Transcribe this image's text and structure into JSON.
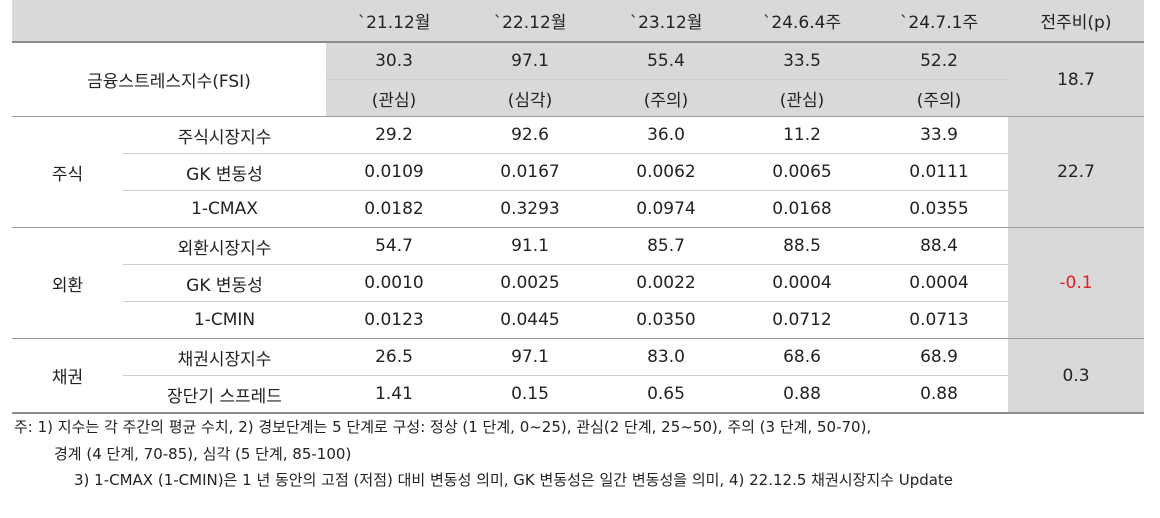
{
  "header": {
    "cols": [
      "`21.12월",
      "`22.12월",
      "`23.12월",
      "`24.6.4주",
      "`24.7.1주"
    ],
    "change": "전주비(p)"
  },
  "fsi": {
    "label": "금융스트레스지수(FSI)",
    "values": [
      "30.3",
      "97.1",
      "55.4",
      "33.5",
      "52.2"
    ],
    "levels": [
      "(관심)",
      "(심각)",
      "(주의)",
      "(관심)",
      "(주의)"
    ],
    "change": "18.7"
  },
  "stock": {
    "label": "주식",
    "change": "22.7",
    "rows": [
      {
        "label": "주식시장지수",
        "values": [
          "29.2",
          "92.6",
          "36.0",
          "11.2",
          "33.9"
        ]
      },
      {
        "label": "GK 변동성",
        "values": [
          "0.0109",
          "0.0167",
          "0.0062",
          "0.0065",
          "0.0111"
        ]
      },
      {
        "label": "1-CMAX",
        "values": [
          "0.0182",
          "0.3293",
          "0.0974",
          "0.0168",
          "0.0355"
        ]
      }
    ]
  },
  "fx": {
    "label": "외환",
    "change": "-0.1",
    "rows": [
      {
        "label": "외환시장지수",
        "values": [
          "54.7",
          "91.1",
          "85.7",
          "88.5",
          "88.4"
        ]
      },
      {
        "label": "GK 변동성",
        "values": [
          "0.0010",
          "0.0025",
          "0.0022",
          "0.0004",
          "0.0004"
        ]
      },
      {
        "label": "1-CMIN",
        "values": [
          "0.0123",
          "0.0445",
          "0.0350",
          "0.0712",
          "0.0713"
        ]
      }
    ]
  },
  "bond": {
    "label": "채권",
    "change": "0.3",
    "rows": [
      {
        "label": "채권시장지수",
        "values": [
          "26.5",
          "97.1",
          "83.0",
          "68.6",
          "68.9"
        ]
      },
      {
        "label": "장단기 스프레드",
        "values": [
          "1.41",
          "0.15",
          "0.65",
          "0.88",
          "0.88"
        ]
      }
    ]
  },
  "notes": {
    "line1": "주: 1) 지수는 각 주간의 평균 수치, 2) 경보단계는 5 단계로 구성: 정상 (1 단계, 0~25), 관심(2 단계, 25~50), 주의 (3 단계, 50-70),",
    "line2": "경계 (4 단계, 70-85), 심각 (5 단계, 85-100)",
    "line3": "3) 1-CMAX (1-CMIN)은 1 년 동안의 고점 (저점) 대비 변동성 의미, GK 변동성은 일간 변동성을 의미, 4) 22.12.5 채권시장지수 Update"
  }
}
